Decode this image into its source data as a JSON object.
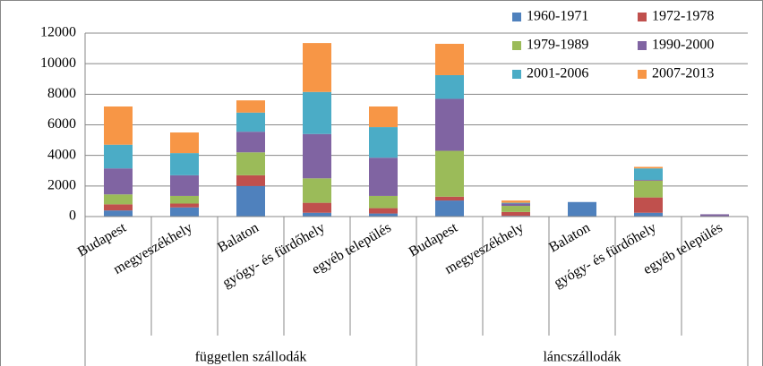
{
  "chart_data": {
    "type": "stacked_bar",
    "categories": [
      "Budapest",
      "megyeszékhely",
      "Balaton",
      "gyógy- és fürdőhely",
      "egyéb település",
      "Budapest",
      "megyeszékhely",
      "Balaton",
      "gyógy- és fürdőhely",
      "egyéb település"
    ],
    "groups": [
      "független szállodák",
      "láncszállodák"
    ],
    "series": [
      {
        "name": "1960-1971",
        "color": "#4f81bd",
        "values": [
          400,
          600,
          2000,
          250,
          200,
          1050,
          50,
          950,
          250,
          0
        ]
      },
      {
        "name": "1972-1978",
        "color": "#c0504d",
        "values": [
          400,
          250,
          700,
          650,
          350,
          250,
          250,
          0,
          1000,
          0
        ]
      },
      {
        "name": "1979-1989",
        "color": "#9bbb59",
        "values": [
          650,
          500,
          1500,
          1600,
          800,
          3000,
          400,
          0,
          1100,
          0
        ]
      },
      {
        "name": "1990-2000",
        "color": "#8064a2",
        "values": [
          1700,
          1350,
          1350,
          2900,
          2500,
          3400,
          150,
          0,
          50,
          150
        ]
      },
      {
        "name": "2001-2006",
        "color": "#4bacc6",
        "values": [
          1550,
          1450,
          1250,
          2750,
          2000,
          1550,
          50,
          0,
          750,
          0
        ]
      },
      {
        "name": "2007-2013",
        "color": "#f79646",
        "values": [
          2500,
          1350,
          800,
          3200,
          1350,
          2050,
          150,
          0,
          100,
          0
        ]
      }
    ],
    "ylim": [
      0,
      12000
    ],
    "yticks": [
      0,
      2000,
      4000,
      6000,
      8000,
      10000,
      12000
    ],
    "grid": true
  }
}
